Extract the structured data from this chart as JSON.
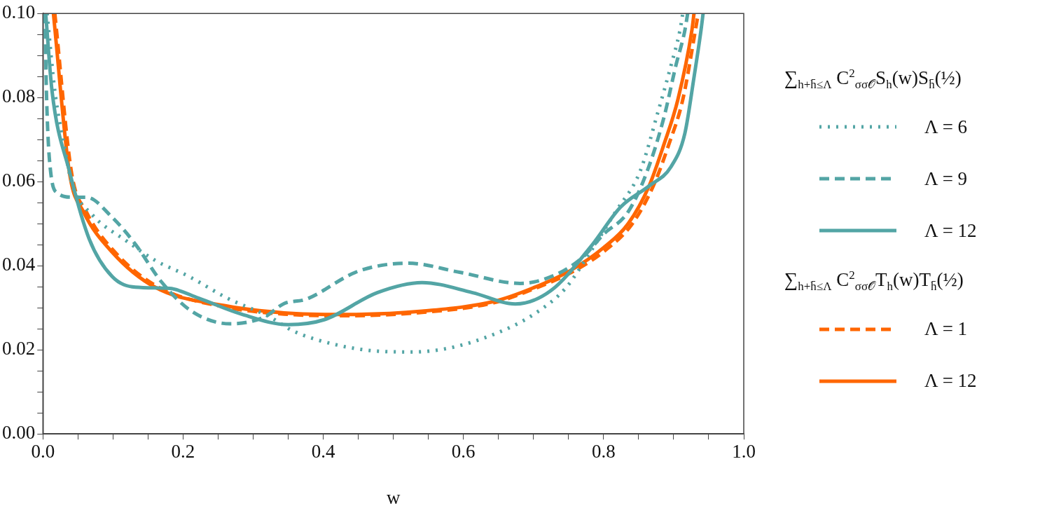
{
  "chart_data": {
    "type": "line",
    "xlabel": "w",
    "legend_title": "∑$_{h+h̄≤Λ}$ C$^{2}$$_{σσ𝒪}$S$_{h}$(w)S$_{h̄}$(½)",
    "annotations": [
      "∑$_{h+h̄≤Λ}$ C$^{2}$$_{σσ𝒪}$T$_{h}$(w)T$_{h̄}$(½)"
    ],
    "xlim": [
      0,
      1
    ],
    "ylim": [
      0,
      0.1
    ],
    "xticks": [
      {
        "value": 0,
        "label": "0.0"
      },
      {
        "value": 0.05,
        "label": null
      },
      {
        "value": 0.1,
        "label": null
      },
      {
        "value": 0.15,
        "label": null
      },
      {
        "value": 0.2,
        "label": "0.2"
      },
      {
        "value": 0.25,
        "label": null
      },
      {
        "value": 0.3,
        "label": null
      },
      {
        "value": 0.35,
        "label": null
      },
      {
        "value": 0.4,
        "label": "0.4"
      },
      {
        "value": 0.45,
        "label": null
      },
      {
        "value": 0.5,
        "label": null
      },
      {
        "value": 0.55,
        "label": null
      },
      {
        "value": 0.6,
        "label": "0.6"
      },
      {
        "value": 0.65,
        "label": null
      },
      {
        "value": 0.7,
        "label": null
      },
      {
        "value": 0.75,
        "label": null
      },
      {
        "value": 0.8,
        "label": "0.8"
      },
      {
        "value": 0.85,
        "label": null
      },
      {
        "value": 0.9,
        "label": null
      },
      {
        "value": 0.95,
        "label": null
      },
      {
        "value": 1,
        "label": "1.0"
      }
    ],
    "yticks": [
      {
        "value": 0,
        "label": "0.00"
      },
      {
        "value": 0.005,
        "label": null
      },
      {
        "value": 0.01,
        "label": null
      },
      {
        "value": 0.015,
        "label": null
      },
      {
        "value": 0.02,
        "label": "0.02"
      },
      {
        "value": 0.025,
        "label": null
      },
      {
        "value": 0.03,
        "label": null
      },
      {
        "value": 0.035,
        "label": null
      },
      {
        "value": 0.04,
        "label": "0.04"
      },
      {
        "value": 0.045,
        "label": null
      },
      {
        "value": 0.05,
        "label": null
      },
      {
        "value": 0.055,
        "label": null
      },
      {
        "value": 0.06,
        "label": "0.06"
      },
      {
        "value": 0.065,
        "label": null
      },
      {
        "value": 0.07,
        "label": null
      },
      {
        "value": 0.075,
        "label": null
      },
      {
        "value": 0.08,
        "label": "0.08"
      },
      {
        "value": 0.085,
        "label": null
      },
      {
        "value": 0.09,
        "label": null
      },
      {
        "value": 0.095,
        "label": null
      },
      {
        "value": 0.1,
        "label": "0.10"
      }
    ],
    "grid": false,
    "legend": "right",
    "marker": "none",
    "series": [
      {
        "name": "Λ = 6",
        "color": "#53a5a5",
        "line_style": "dotted",
        "x": [
          0.006,
          0.017,
          0.03,
          0.042,
          0.07,
          0.12,
          0.16,
          0.209,
          0.263,
          0.324,
          0.357,
          0.416,
          0.477,
          0.528,
          0.582,
          0.648,
          0.699,
          0.746,
          0.78,
          0.817,
          0.852,
          0.878,
          0.896,
          0.909,
          0.913
        ],
        "values": [
          0.1,
          0.0816,
          0.0688,
          0.0592,
          0.0522,
          0.0458,
          0.0413,
          0.0374,
          0.0323,
          0.0278,
          0.0245,
          0.0213,
          0.0197,
          0.0195,
          0.0205,
          0.024,
          0.0283,
          0.0347,
          0.043,
          0.0528,
          0.0624,
          0.0768,
          0.0875,
          0.096,
          0.1
        ]
      },
      {
        "name": "Λ = 9",
        "color": "#53a5a5",
        "line_style": "dashed",
        "x": [
          0.003,
          0.005,
          0.011,
          0.021,
          0.042,
          0.062,
          0.099,
          0.132,
          0.169,
          0.213,
          0.267,
          0.316,
          0.344,
          0.375,
          0.45,
          0.521,
          0.596,
          0.681,
          0.732,
          0.77,
          0.8,
          0.835,
          0.862,
          0.886,
          0.903,
          0.916,
          0.92
        ],
        "values": [
          0.1,
          0.0816,
          0.0624,
          0.0573,
          0.0563,
          0.0563,
          0.0515,
          0.0451,
          0.0362,
          0.0291,
          0.0262,
          0.0278,
          0.031,
          0.032,
          0.0387,
          0.0406,
          0.0384,
          0.0358,
          0.0379,
          0.042,
          0.0475,
          0.0528,
          0.0624,
          0.0752,
          0.0875,
          0.096,
          0.1
        ]
      },
      {
        "name": "Λ = 12",
        "color": "#53a5a5",
        "line_style": "solid",
        "x": [
          0.004,
          0.013,
          0.038,
          0.066,
          0.099,
          0.132,
          0.181,
          0.222,
          0.283,
          0.35,
          0.402,
          0.477,
          0.541,
          0.613,
          0.674,
          0.725,
          0.783,
          0.824,
          0.865,
          0.896,
          0.916,
          0.929,
          0.939,
          0.942
        ],
        "values": [
          0.1,
          0.0816,
          0.0624,
          0.0464,
          0.0374,
          0.0349,
          0.0346,
          0.0323,
          0.0285,
          0.026,
          0.0272,
          0.0336,
          0.036,
          0.0336,
          0.0309,
          0.0341,
          0.0448,
          0.0539,
          0.059,
          0.0635,
          0.0715,
          0.0848,
          0.096,
          0.1
        ]
      },
      {
        "name": "Λ = 1",
        "color": "#ff6600",
        "line_style": "dashed",
        "x": [
          0.017,
          0.041,
          0.062,
          0.103,
          0.165,
          0.263,
          0.344,
          0.426,
          0.541,
          0.643,
          0.699,
          0.756,
          0.805,
          0.841,
          0.871,
          0.893,
          0.913,
          0.931,
          0.935
        ],
        "values": [
          0.1,
          0.062,
          0.0528,
          0.0432,
          0.0349,
          0.0301,
          0.0285,
          0.0281,
          0.0289,
          0.0312,
          0.0344,
          0.0386,
          0.044,
          0.05,
          0.059,
          0.0688,
          0.0795,
          0.096,
          0.1
        ]
      },
      {
        "name": "Λ = 12",
        "color": "#ff6600",
        "line_style": "solid",
        "x": [
          0.015,
          0.038,
          0.058,
          0.099,
          0.16,
          0.263,
          0.344,
          0.426,
          0.541,
          0.643,
          0.699,
          0.753,
          0.8,
          0.835,
          0.865,
          0.886,
          0.906,
          0.926,
          0.929
        ],
        "values": [
          0.1,
          0.062,
          0.0528,
          0.0432,
          0.0349,
          0.0304,
          0.0288,
          0.0284,
          0.0292,
          0.0315,
          0.0347,
          0.0389,
          0.0443,
          0.05,
          0.059,
          0.0688,
          0.0795,
          0.096,
          0.1
        ]
      }
    ]
  }
}
